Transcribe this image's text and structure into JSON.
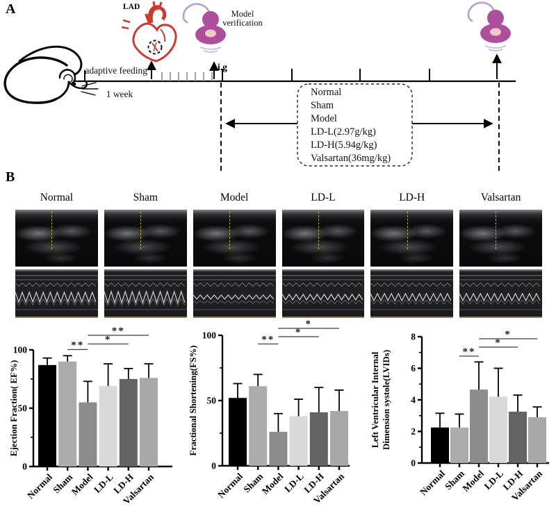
{
  "panel_a": {
    "label": "A",
    "lad_label": "LAD",
    "model_verification": [
      "Model",
      "verification"
    ],
    "adaptive_feeding_label": "adaptive feeding",
    "week_label": "1 week",
    "ig_label": "i.g",
    "groups_box": [
      "Normal",
      "Sham",
      "Model",
      "LD-L(2.97g/kg)",
      "LD-H(5.94g/kg)",
      "Valsartan(36mg/kg)"
    ]
  },
  "panel_b": {
    "label": "B",
    "groups": [
      "Normal",
      "Sham",
      "Model",
      "LD-L",
      "LD-H",
      "Valsartan"
    ]
  },
  "echo": {
    "mmode_wave_amplitudes": [
      7,
      8,
      3,
      4,
      5,
      5
    ]
  },
  "colors": {
    "heart_red": "#c93a31",
    "probe_purple": "#ae4f9d",
    "probe_center": "#f2c9c3",
    "probe_cable": "#b5a3d6",
    "gray_ticks": "#8a8a8a"
  },
  "chart_data": [
    {
      "type": "bar",
      "title": "",
      "xlabel": "",
      "ylabel": "Ejection Fraction( EF%)",
      "ylabel_lines": [
        "Ejection Fraction( EF%)"
      ],
      "categories": [
        "Normal",
        "Sham",
        "Model",
        "LD-L",
        "LD-H",
        "Valsartan"
      ],
      "values": [
        87,
        90,
        55,
        69,
        75,
        76
      ],
      "errors_upper": [
        6,
        5,
        18,
        19,
        9,
        12
      ],
      "ylim": [
        0,
        100
      ],
      "yticks": [
        0,
        50,
        100
      ],
      "grid": false,
      "bar_colors": [
        "#000000",
        "#ababab",
        "#8c8c8c",
        "#d9d9d9",
        "#646464",
        "#a8a8a8"
      ],
      "significance": [
        {
          "from": "Sham",
          "to": "Model",
          "label": "**"
        },
        {
          "from": "Model",
          "to": "LD-H",
          "label": "*"
        },
        {
          "from": "Model",
          "to": "Valsartan",
          "label": "**"
        }
      ]
    },
    {
      "type": "bar",
      "title": "",
      "xlabel": "",
      "ylabel": "Fractional Shortening(FS%)",
      "ylabel_lines": [
        "Fractional Shortening(FS%)"
      ],
      "categories": [
        "Normal",
        "Sham",
        "Model",
        "LD-L",
        "LD-H",
        "Valsartan"
      ],
      "values": [
        52,
        61,
        26,
        38,
        41,
        42
      ],
      "errors_upper": [
        11,
        9,
        14,
        13,
        19,
        16
      ],
      "ylim": [
        0,
        100
      ],
      "yticks": [
        0,
        50,
        100
      ],
      "grid": false,
      "bar_colors": [
        "#000000",
        "#ababab",
        "#8c8c8c",
        "#d9d9d9",
        "#646464",
        "#a8a8a8"
      ],
      "significance": [
        {
          "from": "Sham",
          "to": "Model",
          "label": "**"
        },
        {
          "from": "Model",
          "to": "LD-H",
          "label": "*"
        },
        {
          "from": "Model",
          "to": "Valsartan",
          "label": "*"
        }
      ]
    },
    {
      "type": "bar",
      "title": "",
      "xlabel": "",
      "ylabel": "Left Ventricular Internal Dimension systole(LVIDs)",
      "ylabel_lines": [
        "Left Ventricular Internal",
        "Dimension systole(LVIDs)"
      ],
      "categories": [
        "Normal",
        "Sham",
        "Model",
        "LD-L",
        "LD-H",
        "Valsartan"
      ],
      "values": [
        2.25,
        2.25,
        4.65,
        4.2,
        3.25,
        2.9
      ],
      "errors_upper": [
        0.9,
        0.85,
        1.75,
        1.8,
        1.05,
        0.65
      ],
      "ylim": [
        0,
        8
      ],
      "yticks": [
        0,
        2,
        4,
        6,
        8
      ],
      "grid": false,
      "bar_colors": [
        "#000000",
        "#ababab",
        "#8c8c8c",
        "#d9d9d9",
        "#646464",
        "#a8a8a8"
      ],
      "significance": [
        {
          "from": "Sham",
          "to": "Model",
          "label": "**"
        },
        {
          "from": "Model",
          "to": "LD-H",
          "label": "*"
        },
        {
          "from": "Model",
          "to": "Valsartan",
          "label": "*"
        }
      ]
    }
  ]
}
